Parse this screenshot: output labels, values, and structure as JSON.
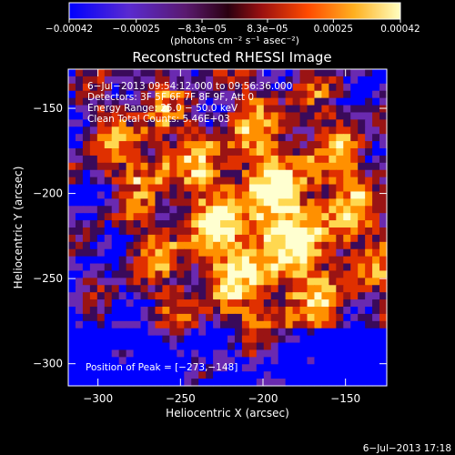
{
  "chart_data": {
    "type": "heatmap",
    "title": "Reconstructed RHESSI Image",
    "xlabel": "Heliocentric X (arcsec)",
    "ylabel": "Heliocentric Y (arcsec)",
    "xlim": [
      -318,
      -125
    ],
    "ylim": [
      -313,
      -127
    ],
    "xticks": [
      -300,
      -250,
      -200,
      -150
    ],
    "xtick_labels": [
      "−300",
      "−250",
      "−200",
      "−150"
    ],
    "yticks": [
      -150,
      -200,
      -250,
      -300
    ],
    "ytick_labels": [
      "−150",
      "−200",
      "−250",
      "−300"
    ],
    "colorbar": {
      "range": [
        -0.00042,
        0.00042
      ],
      "ticks": [
        -0.00042,
        -0.00025,
        -8.3e-05,
        8.3e-05,
        0.00025,
        0.00042
      ],
      "tick_labels": [
        "−0.00042",
        "−0.00025",
        "−8.3e−05",
        "8.3e−05",
        "0.00025",
        "0.00042"
      ],
      "unit_label": "(photons cm⁻² s⁻¹ asec⁻²)"
    },
    "annotations": [
      "6−Jul−2013 09:54:12.000 to 09:56:36.000",
      "Detectors: 3F 5F 6F 7F 8F 9F, Att 0",
      "Energy Range: 25.0 − 50.0 keV",
      "Clean     Total Counts: 5.46E+03"
    ],
    "peak_label": "Position of Peak = [−273,−148]",
    "peak_position": [
      -273,
      -148
    ],
    "footer_date": "6−Jul−2013 17:18",
    "grid": false,
    "colormap": [
      "#0000ff",
      "#6a2ab0",
      "#3a0a5a",
      "#9a1414",
      "#e03000",
      "#ff9000",
      "#ffd850",
      "#ffffd0"
    ]
  }
}
